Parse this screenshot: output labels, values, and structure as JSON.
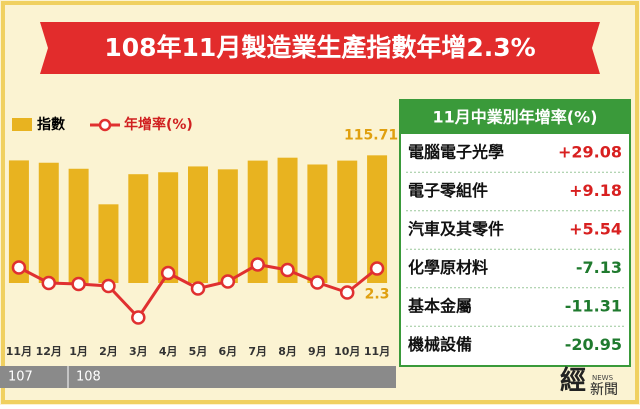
{
  "chart_data": {
    "type": "bar_line",
    "title": "108年11月製造業生產指數年增2.3%",
    "categories": [
      "11月",
      "12月",
      "1月",
      "2月",
      "3月",
      "4月",
      "5月",
      "6月",
      "7月",
      "8月",
      "9月",
      "10月",
      "11月"
    ],
    "years": [
      "107",
      "108"
    ],
    "series": [
      {
        "name": "指數",
        "type": "bar",
        "color": "#e8b320",
        "values": [
          113.1,
          111.9,
          108.8,
          90.5,
          106.0,
          107.0,
          110.0,
          108.5,
          113.0,
          114.5,
          111.0,
          113.0,
          115.71
        ],
        "value_labels": [
          null,
          null,
          null,
          null,
          null,
          null,
          null,
          null,
          null,
          null,
          null,
          null,
          "115.71"
        ]
      },
      {
        "name": "年增率(%)",
        "type": "line",
        "axis": "y2",
        "color": "#e03030",
        "values": [
          2.5,
          -0.6,
          -0.8,
          -1.2,
          -7.5,
          1.4,
          -1.7,
          -0.3,
          3.1,
          2.0,
          -0.5,
          -2.5,
          2.3
        ],
        "value_labels": [
          null,
          null,
          null,
          null,
          null,
          null,
          null,
          null,
          null,
          null,
          null,
          null,
          "2.3"
        ]
      }
    ],
    "ylim": [
      50,
      120
    ],
    "y2lim": [
      -10,
      6
    ]
  },
  "panel": {
    "title": "11月中業別年增率(%)",
    "rows": [
      [
        "電腦電子光學",
        "+29.08"
      ],
      [
        "電子零組件",
        "+9.18"
      ],
      [
        "汽車及其零件",
        "+5.54"
      ],
      [
        "化學原材料",
        "-7.13"
      ],
      [
        "基本金屬",
        "-11.31"
      ],
      [
        "機械設備",
        "-20.95"
      ]
    ]
  },
  "logo": {
    "main": "經",
    "sub": "新聞",
    "news": "NEWS"
  }
}
